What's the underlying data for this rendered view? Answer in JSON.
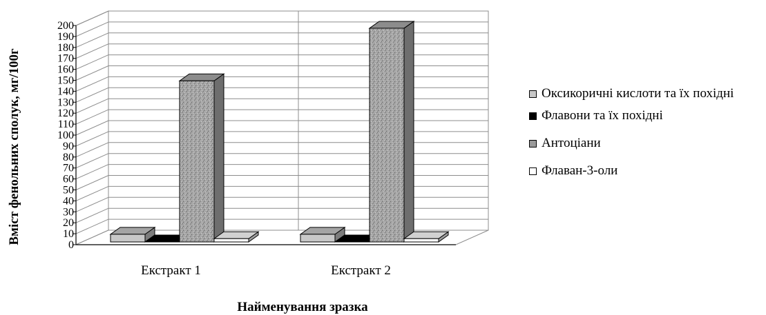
{
  "chart_data": {
    "type": "bar",
    "title": "",
    "xlabel": "Найменування зразка",
    "ylabel": "Вміст фенольних сполук, мг/100г",
    "ylim": [
      0,
      200
    ],
    "yticks": [
      0,
      10,
      20,
      30,
      40,
      50,
      60,
      70,
      80,
      90,
      100,
      110,
      120,
      130,
      140,
      150,
      160,
      170,
      180,
      190,
      200
    ],
    "categories": [
      "Екстракт 1",
      "Екстракт 2"
    ],
    "grid": true,
    "legend_position": "right",
    "series": [
      {
        "name": "Оксикоричні кислоти та їх похідні",
        "values": [
          7,
          7
        ],
        "color": "#c8c8c8"
      },
      {
        "name": "Флавони та їх похідні",
        "values": [
          0,
          0
        ],
        "color": "#000000"
      },
      {
        "name": "Антоціани",
        "values": [
          147,
          195
        ],
        "color": "#9a9a9a"
      },
      {
        "name": "Флаван-3-оли",
        "values": [
          3,
          3
        ],
        "color": "#ffffff"
      }
    ]
  }
}
